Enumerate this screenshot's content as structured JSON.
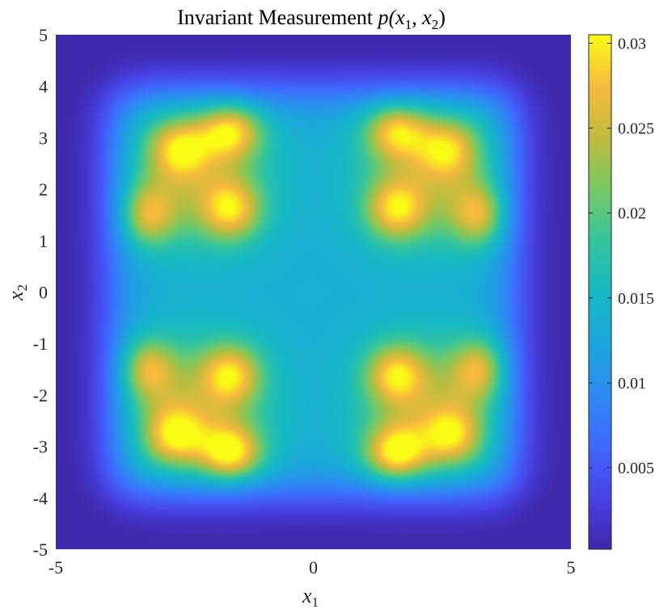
{
  "chart_data": {
    "type": "heatmap",
    "title_main": "Invariant Measurement ",
    "title_math": "p(x",
    "title_sub1": "1",
    "title_mid": ", x",
    "title_sub2": "2",
    "title_end": ")",
    "xlabel": "x",
    "xlabel_sub": "1",
    "ylabel": "x",
    "ylabel_sub": "2",
    "xlim": [
      -5,
      5
    ],
    "ylim": [
      -5,
      5
    ],
    "xticks": [
      -5,
      0,
      5
    ],
    "xtick_labels": [
      "-5",
      "0",
      "5"
    ],
    "yticks": [
      5,
      4,
      3,
      2,
      1,
      0,
      -1,
      -2,
      -3,
      -4,
      -5
    ],
    "ytick_labels": [
      "5",
      "4",
      "3",
      "2",
      "1",
      "0",
      "-1",
      "-2",
      "-3",
      "-4",
      "-5"
    ],
    "colorbar": {
      "range": [
        0.0002,
        0.0305
      ],
      "ticks": [
        0.03,
        0.025,
        0.02,
        0.015,
        0.01,
        0.005
      ],
      "tick_labels": [
        "0.03",
        "0.025",
        "0.02",
        "0.015",
        "0.01",
        "0.005"
      ],
      "colormap": "parula"
    },
    "peaks": [
      {
        "x": -1.6,
        "y": 3.2,
        "value": 0.028
      },
      {
        "x": 1.6,
        "y": 3.2,
        "value": 0.027
      },
      {
        "x": -1.6,
        "y": 1.6,
        "value": 0.026
      },
      {
        "x": 1.6,
        "y": 1.6,
        "value": 0.026
      },
      {
        "x": -3.3,
        "y": 1.5,
        "value": 0.026
      },
      {
        "x": 3.3,
        "y": 1.5,
        "value": 0.026
      },
      {
        "x": -1.6,
        "y": -1.6,
        "value": 0.026
      },
      {
        "x": 1.6,
        "y": -1.6,
        "value": 0.026
      },
      {
        "x": -3.3,
        "y": -1.5,
        "value": 0.026
      },
      {
        "x": 3.3,
        "y": -1.5,
        "value": 0.026
      },
      {
        "x": -1.6,
        "y": -3.2,
        "value": 0.03
      },
      {
        "x": 1.6,
        "y": -3.2,
        "value": 0.03
      },
      {
        "x": -2.7,
        "y": -2.8,
        "value": 0.025
      },
      {
        "x": 2.7,
        "y": -2.8,
        "value": 0.024
      },
      {
        "x": -2.6,
        "y": 2.8,
        "value": 0.024
      },
      {
        "x": 2.6,
        "y": 2.8,
        "value": 0.023
      }
    ],
    "center_value": 0.0135,
    "background_value": 0.0003
  }
}
